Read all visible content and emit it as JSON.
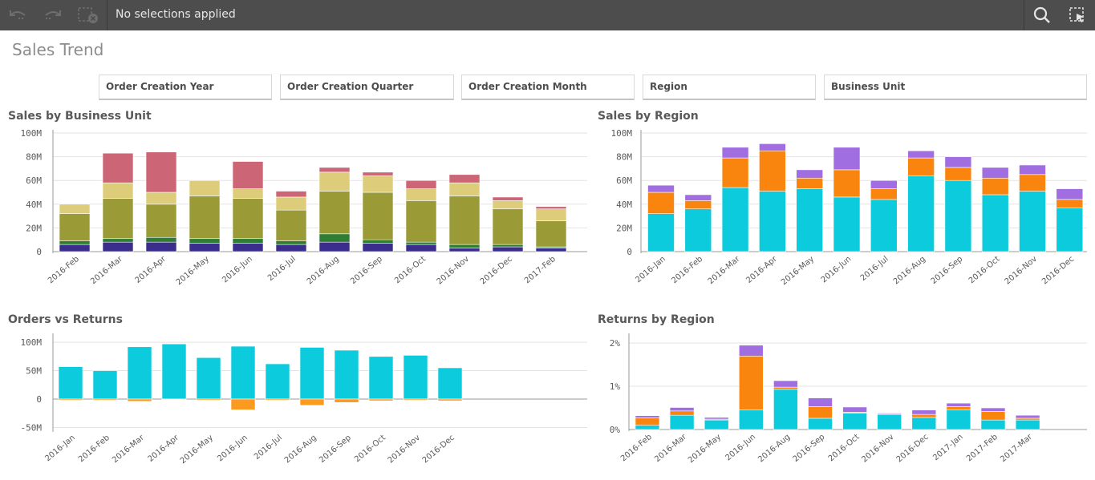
{
  "toolbar": {
    "selection_text": "No selections applied",
    "icons": [
      "undo-icon",
      "redo-icon",
      "clear-selections-icon",
      "search-icon",
      "selection-tool-icon"
    ]
  },
  "page": {
    "title": "Sales Trend"
  },
  "filters": [
    "Order Creation Year",
    "Order Creation Quarter",
    "Order Creation Month",
    "Region",
    "Business Unit"
  ],
  "colors": {
    "bu": [
      "#3a2d8c",
      "#2e7d32",
      "#9a9b36",
      "#ddcc7a",
      "#cc6677"
    ],
    "region": [
      "#0bcbdc",
      "#fa850e",
      "#a06ee0"
    ],
    "returns": "#fa9a1e",
    "grid": "#e3e3e3",
    "axis": "#9a9a9a"
  },
  "chart_data": [
    {
      "id": "sales-by-business-unit",
      "type": "bar",
      "stacked": true,
      "title": "Sales by Business Unit",
      "categories": [
        "2016-Feb",
        "2016-Mar",
        "2016-Apr",
        "2016-May",
        "2016-Jun",
        "2016-Jul",
        "2016-Aug",
        "2016-Sep",
        "2016-Oct",
        "2016-Nov",
        "2016-Dec",
        "2017-Feb"
      ],
      "yticks": [
        "100M",
        "80M",
        "60M",
        "40M",
        "20M",
        "0"
      ],
      "ylim": [
        0,
        100000000
      ],
      "series": [
        {
          "values": [
            6000000,
            8000000,
            8000000,
            7000000,
            7000000,
            6000000,
            8000000,
            7000000,
            6000000,
            3000000,
            4000000,
            3000000
          ]
        },
        {
          "values": [
            3000000,
            3000000,
            4000000,
            4000000,
            4000000,
            3000000,
            7000000,
            3000000,
            2000000,
            3000000,
            2000000,
            1000000
          ]
        },
        {
          "values": [
            23000000,
            34000000,
            28000000,
            36000000,
            34000000,
            26000000,
            36000000,
            40000000,
            35000000,
            41000000,
            30000000,
            22000000
          ]
        },
        {
          "values": [
            8000000,
            13000000,
            10000000,
            13000000,
            8000000,
            11000000,
            16000000,
            14000000,
            10000000,
            11000000,
            7000000,
            10000000
          ]
        },
        {
          "values": [
            0,
            25000000,
            34000000,
            0,
            23000000,
            5000000,
            4000000,
            3000000,
            7000000,
            7000000,
            3000000,
            2000000
          ]
        }
      ]
    },
    {
      "id": "sales-by-region",
      "type": "bar",
      "stacked": true,
      "title": "Sales by Region",
      "categories": [
        "2016-Jan",
        "2016-Feb",
        "2016-Mar",
        "2016-Apr",
        "2016-May",
        "2016-Jun",
        "2016-Jul",
        "2016-Aug",
        "2016-Sep",
        "2016-Oct",
        "2016-Nov",
        "2016-Dec"
      ],
      "yticks": [
        "100M",
        "80M",
        "60M",
        "40M",
        "20M",
        "0"
      ],
      "ylim": [
        0,
        100000000
      ],
      "series": [
        {
          "values": [
            32000000,
            36000000,
            54000000,
            51000000,
            53000000,
            46000000,
            44000000,
            64000000,
            60000000,
            48000000,
            51000000,
            37000000
          ]
        },
        {
          "values": [
            18000000,
            7000000,
            25000000,
            34000000,
            9000000,
            23000000,
            9000000,
            15000000,
            11000000,
            14000000,
            14000000,
            7000000
          ]
        },
        {
          "values": [
            6000000,
            5000000,
            9000000,
            6000000,
            7000000,
            19000000,
            7000000,
            6000000,
            9000000,
            9000000,
            8000000,
            9000000
          ]
        }
      ]
    },
    {
      "id": "orders-vs-returns",
      "type": "bar",
      "title": "Orders vs Returns",
      "categories": [
        "2016-Jan",
        "2016-Feb",
        "2016-Mar",
        "2016-Apr",
        "2016-May",
        "2016-Jun",
        "2016-Jul",
        "2016-Aug",
        "2016-Sep",
        "2016-Oct",
        "2016-Nov",
        "2016-Dec"
      ],
      "yticks": [
        "100M",
        "50M",
        "0",
        "-50M"
      ],
      "ylim": [
        -55000000,
        110000000
      ],
      "series": [
        {
          "values": [
            57000000,
            50000000,
            92000000,
            97000000,
            73000000,
            93000000,
            62000000,
            91000000,
            86000000,
            75000000,
            77000000,
            55000000
          ]
        },
        {
          "values": [
            -2000000,
            -2000000,
            -4000000,
            -1000000,
            -2000000,
            -19000000,
            -2000000,
            -11000000,
            -6000000,
            -3000000,
            -2000000,
            -3000000
          ]
        }
      ]
    },
    {
      "id": "returns-by-region",
      "type": "bar",
      "stacked": true,
      "title": "Returns by Region",
      "categories": [
        "2016-Feb",
        "2016-Mar",
        "2016-May",
        "2016-Jun",
        "2016-Aug",
        "2016-Sep",
        "2016-Oct",
        "2016-Nov",
        "2016-Dec",
        "2017-Jan",
        "2017-Feb",
        "2017-Mar"
      ],
      "yticks": [
        "2%",
        "1%",
        "0%"
      ],
      "ylim": [
        0,
        2.15
      ],
      "series": [
        {
          "values": [
            0.1,
            0.33,
            0.22,
            0.45,
            0.93,
            0.26,
            0.38,
            0.35,
            0.28,
            0.45,
            0.22,
            0.22
          ]
        },
        {
          "values": [
            0.17,
            0.1,
            0.02,
            1.25,
            0.05,
            0.27,
            0.02,
            0.01,
            0.07,
            0.08,
            0.2,
            0.04
          ]
        },
        {
          "values": [
            0.05,
            0.08,
            0.04,
            0.25,
            0.15,
            0.2,
            0.12,
            0.02,
            0.1,
            0.08,
            0.08,
            0.07
          ]
        }
      ]
    }
  ]
}
